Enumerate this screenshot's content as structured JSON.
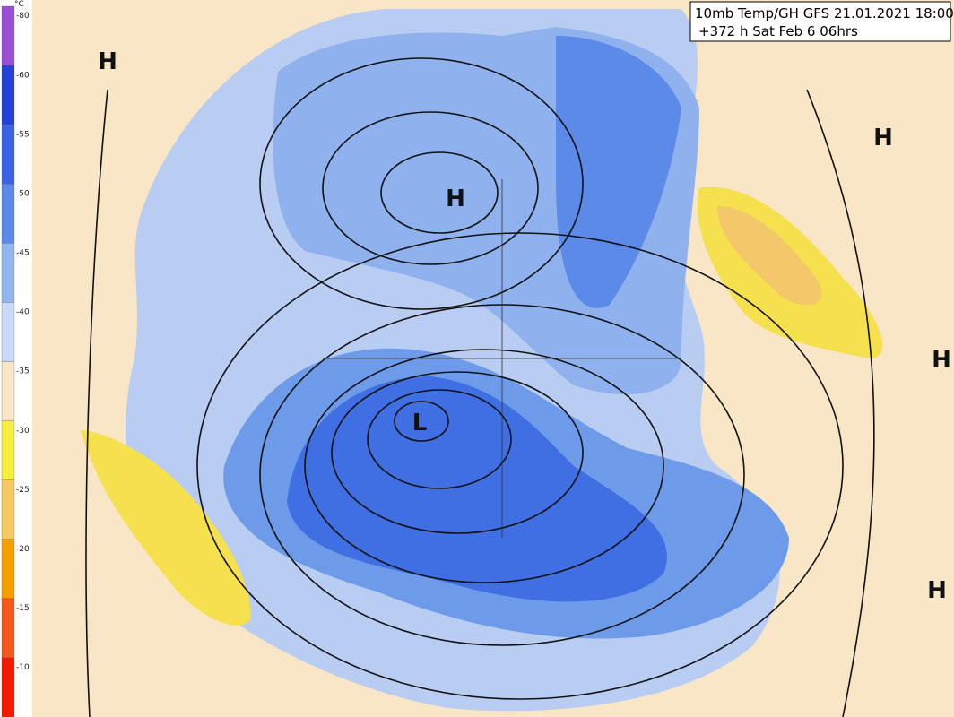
{
  "header": {
    "title": "10mb Temp/GH GFS 21.01.2021 18:00",
    "subtitle": "+372 h Sat Feb 6 06hrs"
  },
  "legend": {
    "unit": "°C",
    "labels": [
      "-80",
      "-60",
      "-55",
      "-50",
      "-45",
      "-40",
      "-35",
      "-30",
      "-25",
      "-20",
      "-15",
      "-10"
    ]
  },
  "pressure_labels": [
    "H",
    "H",
    "H",
    "H",
    "H",
    "L"
  ]
}
